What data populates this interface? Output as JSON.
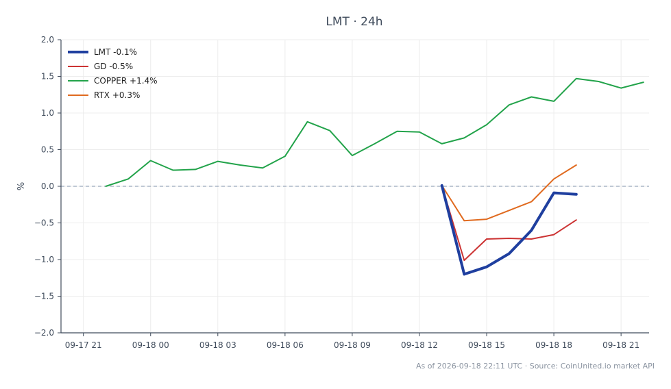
{
  "chart_data": {
    "type": "line",
    "title": "LMT · 24h",
    "ylabel": "%",
    "xlabel": "",
    "footer": "As of 2026-09-18 22:11 UTC · Source: CoinUnited.io market API",
    "x_tick_labels": [
      "09-17 21",
      "09-18 00",
      "09-18 03",
      "09-18 06",
      "09-18 09",
      "09-18 12",
      "09-18 15",
      "09-18 18",
      "09-18 21"
    ],
    "y_tick_labels": [
      "2.0",
      "1.5",
      "1.0",
      "0.5",
      "0.0",
      "−0.5",
      "−1.0",
      "−1.5",
      "−2.0"
    ],
    "y_ticks": [
      2.0,
      1.5,
      1.0,
      0.5,
      0.0,
      -0.5,
      -1.0,
      -1.5,
      -2.0
    ],
    "x_tick_hours": [
      21,
      24,
      27,
      30,
      33,
      36,
      39,
      42,
      45
    ],
    "xlim_hours": [
      20,
      46.25
    ],
    "ylim": [
      -2.0,
      2.0
    ],
    "grid": true,
    "zero_line": true,
    "legend_position": "top-left",
    "series": [
      {
        "name": "LMT -0.1%",
        "color": "#1f3f9f",
        "emphasis": true,
        "x_hours": [
          37,
          38,
          39,
          40,
          41,
          42,
          43
        ],
        "values": [
          0.01,
          -1.2,
          -1.1,
          -0.92,
          -0.6,
          -0.09,
          -0.11
        ]
      },
      {
        "name": "GD -0.5%",
        "color": "#cc3333",
        "x_hours": [
          37,
          38,
          39,
          40,
          41,
          42,
          43
        ],
        "values": [
          0.01,
          -1.01,
          -0.72,
          -0.71,
          -0.72,
          -0.66,
          -0.46
        ]
      },
      {
        "name": "COPPER +1.4%",
        "color": "#22a34a",
        "x_hours": [
          22,
          23,
          24,
          25,
          26,
          27,
          28,
          29,
          30,
          31,
          32,
          33,
          34,
          35,
          36,
          37,
          38,
          39,
          40,
          41,
          42,
          43,
          44,
          45,
          46
        ],
        "values": [
          0.0,
          0.1,
          0.35,
          0.22,
          0.23,
          0.34,
          0.29,
          0.25,
          0.41,
          0.88,
          0.76,
          0.42,
          0.58,
          0.75,
          0.74,
          0.58,
          0.66,
          0.84,
          1.11,
          1.22,
          1.16,
          1.47,
          1.43,
          1.34,
          1.42
        ]
      },
      {
        "name": "RTX +0.3%",
        "color": "#e06a1f",
        "x_hours": [
          37,
          38,
          39,
          40,
          41,
          42,
          43
        ],
        "values": [
          0.01,
          -0.47,
          -0.45,
          -0.33,
          -0.21,
          0.1,
          0.29
        ]
      }
    ]
  }
}
